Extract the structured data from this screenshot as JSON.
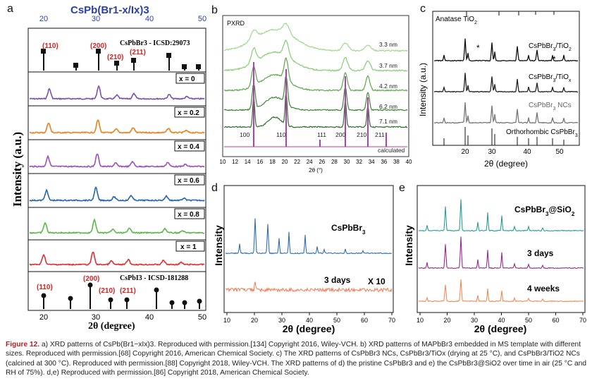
{
  "panels": {
    "a": {
      "letter": "a",
      "title": "CsPb(Br1-x/Ix)3",
      "ylabel": "Intensity (a.u.)",
      "xlabel": "2θ (degree)",
      "top_ticks": [
        "20",
        "30",
        "40",
        "50"
      ],
      "bottom_ticks": [
        "20",
        "30",
        "40",
        "50"
      ],
      "ref_top": {
        "name": "CsPbBr3 - ICSD:29073",
        "labels": [
          "(110)",
          "(200)",
          "(210)",
          "(211)"
        ]
      },
      "ref_bottom": {
        "name": "CsPbI3 - ICSD-181288",
        "labels": [
          "(110)",
          "(200)",
          "(210)",
          "(211)"
        ]
      },
      "series": [
        {
          "label": "x = 0",
          "color": "#7b4fb0"
        },
        {
          "label": "x = 0.2",
          "color": "#f07f16"
        },
        {
          "label": "x = 0.4",
          "color": "#9a4fc0"
        },
        {
          "label": "x = 0.6",
          "color": "#2166b0"
        },
        {
          "label": "x = 0.8",
          "color": "#5cb84a"
        },
        {
          "label": "x = 1",
          "color": "#e03030"
        }
      ]
    },
    "b": {
      "letter": "b",
      "tag": "PXRD",
      "xlabel": "2θ (°)",
      "xticks": [
        "10",
        "12",
        "14",
        "16",
        "18",
        "20",
        "22",
        "24",
        "26",
        "28",
        "30",
        "32",
        "34",
        "36",
        "38",
        "40"
      ],
      "sizes": [
        "3.3 nm",
        "3.7 nm",
        "4.2 nm",
        "6.2 nm",
        "7.1 nm"
      ],
      "calc": "calculated",
      "peaks": [
        "100",
        "110",
        "111",
        "200",
        "210",
        "211"
      ]
    },
    "c": {
      "letter": "c",
      "ylabel": "Intensity (a.u.)",
      "xlabel": "2θ (degree)",
      "xticks": [
        "20",
        "30",
        "40",
        "50"
      ],
      "ref_top": "Anatase TiO2",
      "ref_bottom": "Orthorhombic CsPbBr3",
      "traces": [
        "CsPbBr3/TiO2",
        "CsPbBr3/TiOx",
        "CsPbBr3 NCs"
      ]
    },
    "d": {
      "letter": "d",
      "ylabel": "Intensity",
      "xlabel": "2θ (degree)",
      "xticks": [
        "10",
        "20",
        "30",
        "40",
        "50",
        "60",
        "70"
      ],
      "trace1": "CsPbBr3",
      "trace2": "3 days",
      "mult": "X 10"
    },
    "e": {
      "letter": "e",
      "ylabel": "Intensity",
      "xlabel": "2θ (degree)",
      "xticks": [
        "10",
        "20",
        "30",
        "40",
        "50",
        "60",
        "70"
      ],
      "traces": [
        "CsPbBr3@SiO2",
        "3 days",
        "4 weeks"
      ]
    }
  },
  "caption": {
    "fig": "Figure 12.",
    "text": "a) XRD patterns of CsPb(Br1−xIx)3. Reproduced with permission.[134] Copyright 2016, Wiley-VCH. b) XRD patterns of MAPbBr3 embedded in MS template with different sizes. Reproduced with permission.[68] Copyright 2016, American Chemical Society. c) The XRD patterns of CsPbBr3 NCs, CsPbBr3/TiOx (drying at 25 °C), and CsPbBr3/TiO2 NCs (calcined at 300 °C). Reproduced with permission.[88] Copyright 2018, Wiley-VCH. The XRD patterns of d) the pristine CsPbBr3 and e) the CsPbBr3@SiO2 over time in air (25 °C and RH of 75%). d,e) Reproduced with permission.[86] Copyright 2018, American Chemical Society."
  }
}
